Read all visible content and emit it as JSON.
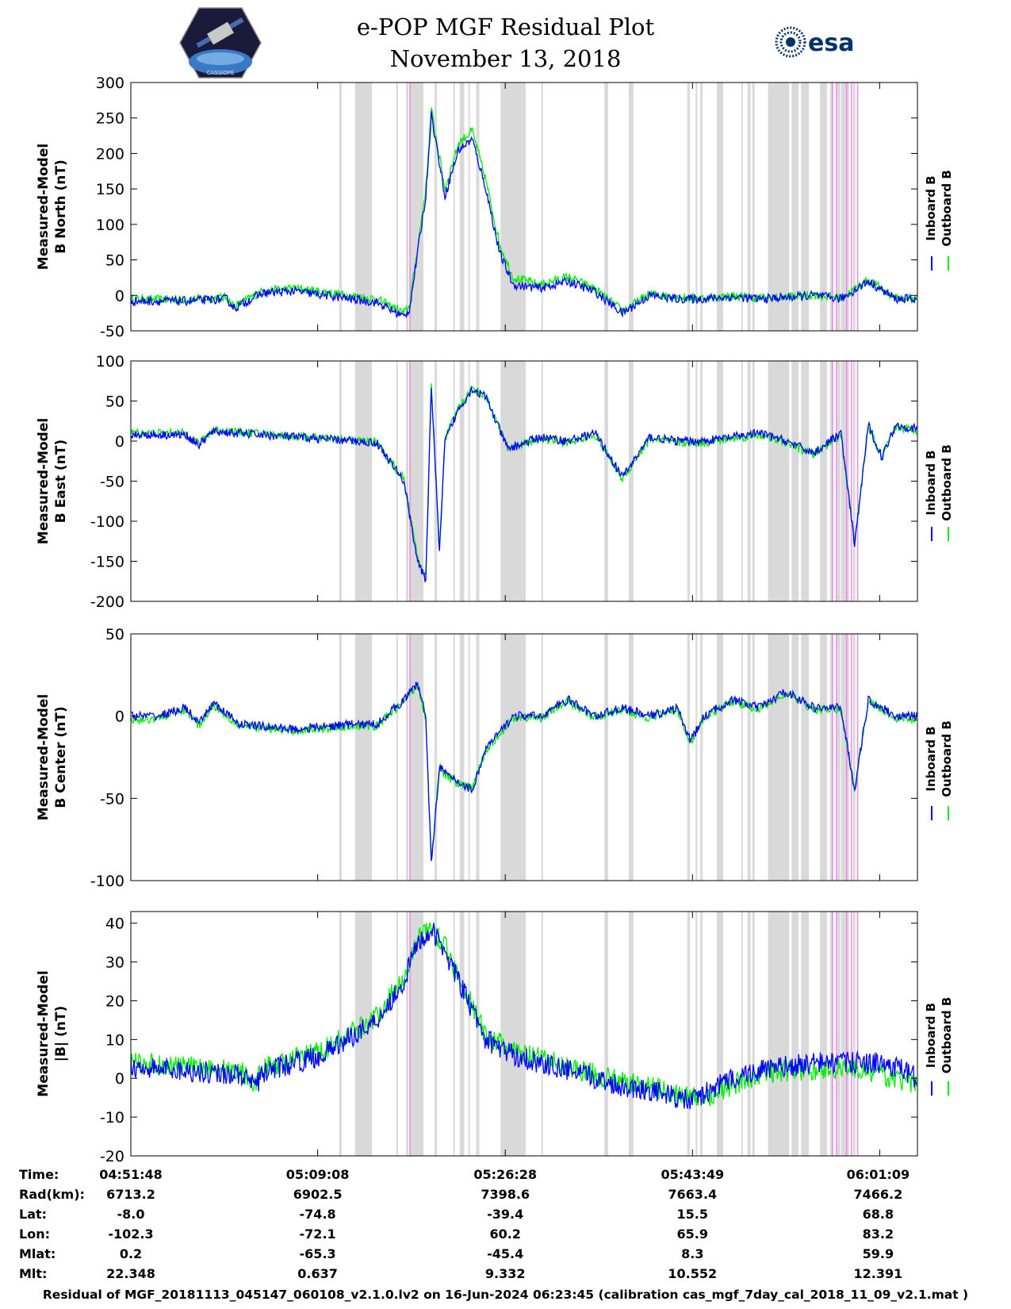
{
  "title": "e-POP MGF Residual Plot",
  "date": "November 13, 2018",
  "logos": {
    "left": "cassiope-mission-logo",
    "right": "esa-logo",
    "right_text": "esa"
  },
  "colors": {
    "inboard": "#0000ff",
    "outboard": "#00ee00",
    "shade": "#d9d9d9",
    "magenta": "#ee88ee"
  },
  "chart_data": [
    {
      "type": "line",
      "ylabel_line1": "Measured-Model",
      "ylabel_line2": "B North (nT)",
      "ylim": [
        -50,
        300
      ],
      "yticks": [
        -50,
        0,
        50,
        100,
        150,
        200,
        250,
        300
      ],
      "legend": [
        "Inboard B",
        "Outboard B"
      ],
      "series": [
        {
          "name": "Inboard B",
          "color": "#0000ff",
          "x": [
            0,
            200,
            350,
            380,
            480,
            600,
            900,
            1000,
            1020,
            1050,
            1080,
            1100,
            1150,
            1200,
            1250,
            1300,
            1350,
            1400,
            1500,
            1600,
            1700,
            1800,
            1900,
            2000,
            2100,
            2200,
            2300,
            2400,
            2500,
            2600,
            2700,
            2800,
            2880
          ],
          "y": [
            -8,
            -8,
            -5,
            -18,
            3,
            6,
            -10,
            -30,
            -20,
            60,
            140,
            255,
            140,
            205,
            220,
            150,
            60,
            15,
            10,
            20,
            5,
            -25,
            0,
            -5,
            -5,
            -2,
            -5,
            -3,
            0,
            -5,
            20,
            -5,
            -5
          ]
        },
        {
          "name": "Outboard B",
          "color": "#00ee00",
          "x": [
            0,
            200,
            350,
            380,
            480,
            600,
            900,
            1000,
            1020,
            1050,
            1080,
            1100,
            1150,
            1200,
            1250,
            1300,
            1350,
            1400,
            1500,
            1600,
            1700,
            1800,
            1900,
            2000,
            2100,
            2200,
            2300,
            2400,
            2500,
            2600,
            2700,
            2800,
            2880
          ],
          "y": [
            -6,
            -6,
            -3,
            -16,
            6,
            10,
            -5,
            -25,
            -15,
            68,
            150,
            262,
            150,
            215,
            232,
            162,
            72,
            25,
            15,
            26,
            9,
            -22,
            2,
            -3,
            -4,
            -1,
            -4,
            -2,
            1,
            -4,
            22,
            -4,
            -4
          ]
        }
      ]
    },
    {
      "type": "line",
      "ylabel_line1": "Measured-Model",
      "ylabel_line2": "B East (nT)",
      "ylim": [
        -200,
        100
      ],
      "yticks": [
        -200,
        -150,
        -100,
        -50,
        0,
        50,
        100
      ],
      "legend": [
        "Inboard B",
        "Outboard B"
      ],
      "series": [
        {
          "name": "Inboard B",
          "color": "#0000ff",
          "x": [
            0,
            200,
            250,
            300,
            600,
            900,
            1000,
            1050,
            1080,
            1100,
            1130,
            1150,
            1200,
            1250,
            1300,
            1380,
            1500,
            1600,
            1700,
            1800,
            1900,
            2000,
            2100,
            2200,
            2300,
            2400,
            2500,
            2600,
            2650,
            2700,
            2750,
            2800,
            2880
          ],
          "y": [
            8,
            8,
            -5,
            12,
            5,
            -2,
            -50,
            -150,
            -175,
            70,
            -140,
            0,
            40,
            65,
            55,
            -10,
            5,
            0,
            10,
            -45,
            5,
            0,
            0,
            5,
            10,
            0,
            -15,
            10,
            -130,
            20,
            -20,
            20,
            15
          ]
        },
        {
          "name": "Outboard B",
          "color": "#00ee00",
          "x": [
            0,
            200,
            250,
            300,
            600,
            900,
            1000,
            1050,
            1080,
            1100,
            1130,
            1150,
            1200,
            1250,
            1300,
            1380,
            1500,
            1600,
            1700,
            1800,
            1900,
            2000,
            2100,
            2200,
            2300,
            2400,
            2500,
            2600,
            2650,
            2700,
            2750,
            2800,
            2880
          ],
          "y": [
            10,
            10,
            -3,
            14,
            6,
            -1,
            -48,
            -146,
            -170,
            72,
            -136,
            2,
            42,
            66,
            56,
            -9,
            3,
            -2,
            8,
            -47,
            3,
            -2,
            -2,
            3,
            8,
            -2,
            -17,
            8,
            -128,
            18,
            -22,
            18,
            13
          ]
        }
      ]
    },
    {
      "type": "line",
      "ylabel_line1": "Measured-Model",
      "ylabel_line2": "B Center (nT)",
      "ylim": [
        -100,
        50
      ],
      "yticks": [
        -100,
        -50,
        0,
        50
      ],
      "legend": [
        "Inboard B",
        "Outboard B"
      ],
      "series": [
        {
          "name": "Inboard B",
          "color": "#0000ff",
          "x": [
            0,
            100,
            200,
            250,
            300,
            400,
            600,
            800,
            900,
            1000,
            1050,
            1080,
            1100,
            1130,
            1150,
            1200,
            1250,
            1300,
            1400,
            1500,
            1600,
            1700,
            1800,
            1900,
            2000,
            2050,
            2100,
            2200,
            2300,
            2400,
            2500,
            2600,
            2650,
            2700,
            2800,
            2880
          ],
          "y": [
            0,
            0,
            5,
            -5,
            8,
            -5,
            -8,
            -5,
            -5,
            10,
            20,
            0,
            -90,
            -30,
            -35,
            -40,
            -45,
            -20,
            0,
            0,
            10,
            0,
            5,
            0,
            5,
            -15,
            0,
            10,
            5,
            15,
            5,
            5,
            -45,
            10,
            0,
            0
          ]
        },
        {
          "name": "Outboard B",
          "color": "#00ee00",
          "x": [
            0,
            100,
            200,
            250,
            300,
            400,
            600,
            800,
            900,
            1000,
            1050,
            1080,
            1100,
            1130,
            1150,
            1200,
            1250,
            1300,
            1400,
            1500,
            1600,
            1700,
            1800,
            1900,
            2000,
            2050,
            2100,
            2200,
            2300,
            2400,
            2500,
            2600,
            2650,
            2700,
            2800,
            2880
          ],
          "y": [
            -3,
            -1,
            4,
            -6,
            7,
            -6,
            -9,
            -6,
            -6,
            9,
            19,
            -1,
            -89,
            -31,
            -36,
            -41,
            -44,
            -21,
            -1,
            -1,
            9,
            -1,
            4,
            -1,
            4,
            -16,
            -1,
            9,
            4,
            14,
            4,
            4,
            -44,
            9,
            -1,
            -2
          ]
        }
      ]
    },
    {
      "type": "line",
      "ylabel_line1": "Measured-Model",
      "ylabel_line2": "|B| (nT)",
      "ylim": [
        -20,
        43
      ],
      "yticks": [
        -20,
        -10,
        0,
        10,
        20,
        30,
        40
      ],
      "legend": [
        "Inboard B",
        "Outboard B"
      ],
      "series": [
        {
          "name": "Inboard B",
          "color": "#0000ff",
          "x": [
            0,
            200,
            400,
            450,
            500,
            700,
            900,
            1000,
            1050,
            1100,
            1150,
            1200,
            1300,
            1400,
            1500,
            1600,
            1700,
            1800,
            1900,
            2000,
            2050,
            2100,
            2200,
            2300,
            2400,
            2500,
            2600,
            2700,
            2800,
            2880
          ],
          "y": [
            3,
            2,
            1,
            -2,
            2,
            6,
            15,
            25,
            35,
            38,
            33,
            25,
            10,
            6,
            4,
            2,
            0,
            -2,
            -3,
            -5,
            -6,
            -4,
            0,
            2,
            3,
            4,
            4,
            4,
            3,
            0
          ]
        },
        {
          "name": "Outboard B",
          "color": "#00ee00",
          "x": [
            0,
            200,
            400,
            450,
            500,
            700,
            900,
            1000,
            1050,
            1100,
            1150,
            1200,
            1300,
            1400,
            1500,
            1600,
            1700,
            1800,
            1900,
            2000,
            2050,
            2100,
            2200,
            2300,
            2400,
            2500,
            2600,
            2700,
            2800,
            2880
          ],
          "y": [
            4,
            3,
            2,
            -1,
            3,
            7,
            16,
            26,
            36,
            39,
            34,
            26,
            11,
            7,
            5,
            3,
            1,
            -1,
            -2,
            -4,
            -5,
            -5,
            -2,
            1,
            2,
            2,
            3,
            2,
            0,
            -2
          ]
        }
      ]
    }
  ],
  "x_axis": {
    "tick_times": [
      "04:51:48",
      "05:09:08",
      "05:26:28",
      "05:43:49",
      "06:01:09"
    ],
    "rows": [
      {
        "label": "Time:",
        "values": [
          "04:51:48",
          "05:09:08",
          "05:26:28",
          "05:43:49",
          "06:01:09"
        ]
      },
      {
        "label": "Rad(km):",
        "values": [
          "6713.2",
          "6902.5",
          "7398.6",
          "7663.4",
          "7466.2"
        ]
      },
      {
        "label": "Lat:",
        "values": [
          "-8.0",
          "-74.8",
          "-39.4",
          "15.5",
          "68.8"
        ]
      },
      {
        "label": "Lon:",
        "values": [
          "-102.3",
          "-72.1",
          "60.2",
          "65.9",
          "83.2"
        ]
      },
      {
        "label": "Mlat:",
        "values": [
          "0.2",
          "-65.3",
          "-45.4",
          "8.3",
          "59.9"
        ]
      },
      {
        "label": "Mlt:",
        "values": [
          "22.348",
          "0.637",
          "9.332",
          "10.552",
          "12.391"
        ]
      }
    ]
  },
  "footer": "Residual of MGF_20181113_045147_060108_v2.1.0.lv2 on 16-Jun-2024 06:23:45 (calibration cas_mgf_7day_cal_2018_11_09_v2.1.mat )"
}
